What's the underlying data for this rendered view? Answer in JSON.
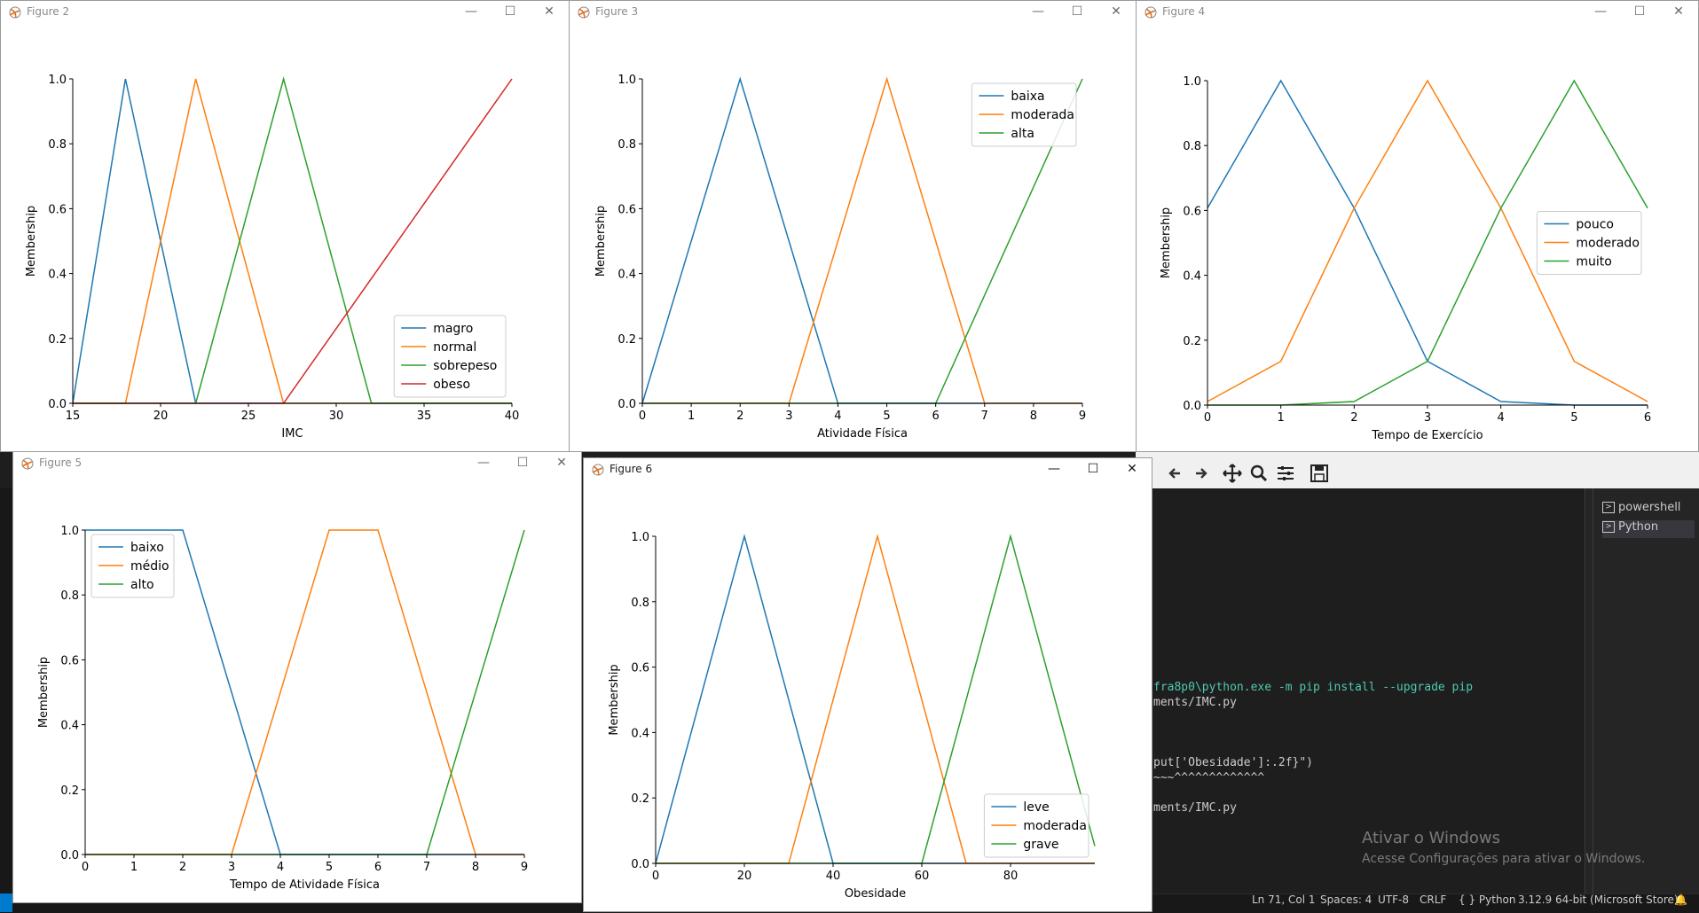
{
  "vscode": {
    "terminal_lines": [
      "fra8p0\\python.exe -m pip install --upgrade pip",
      "ments/IMC.py",
      "put['Obesidade']:.2f}\")",
      "~~~^^^^^^^^^^^^^",
      "ments/IMC.py"
    ],
    "terminal_tabs": [
      "powershell",
      "Python"
    ],
    "watermark_title": "Ativar o Windows",
    "watermark_sub": "Acesse Configurações para ativar o Windows.",
    "status": {
      "position": "Ln 71, Col 1",
      "spaces": "Spaces: 4",
      "encoding": "UTF-8",
      "eol": "CRLF",
      "language": "Python",
      "interpreter": "3.12.9 64-bit (Microsoft Store)"
    },
    "colors": {
      "bg": "#1e1e1e",
      "statusbar": "#181818",
      "terminal_green": "#4ec9b0",
      "activity": "#007acc"
    }
  },
  "window_controls": {
    "minimize": "—",
    "maximize": "☐",
    "close": "✕"
  },
  "mpl_toolbar": [
    "move-icon-back",
    "arrow-left-icon",
    "arrow-right-icon",
    "pan-icon",
    "zoom-icon",
    "configure-icon",
    "save-icon"
  ],
  "windows": [
    {
      "title": "Figure 2",
      "chart_data": {
        "type": "line",
        "xlabel": "IMC",
        "ylabel": "Membership",
        "xlim": [
          15,
          40
        ],
        "ylim": [
          0,
          1
        ],
        "xticks": [
          15,
          20,
          25,
          30,
          35,
          40
        ],
        "yticks": [
          0,
          0.2,
          0.4,
          0.6,
          0.8,
          1.0
        ],
        "legend_position": "lower-right",
        "series": [
          {
            "name": "magro",
            "color": "#1f77b4",
            "points": [
              [
                15,
                0
              ],
              [
                18,
                1
              ],
              [
                22,
                0
              ],
              [
                40,
                0
              ]
            ]
          },
          {
            "name": "normal",
            "color": "#ff7f0e",
            "points": [
              [
                15,
                0
              ],
              [
                18,
                0
              ],
              [
                22,
                1
              ],
              [
                27,
                0
              ],
              [
                40,
                0
              ]
            ]
          },
          {
            "name": "sobrepeso",
            "color": "#2ca02c",
            "points": [
              [
                15,
                0
              ],
              [
                22,
                0
              ],
              [
                27,
                1
              ],
              [
                32,
                0
              ],
              [
                40,
                0
              ]
            ]
          },
          {
            "name": "obeso",
            "color": "#d62728",
            "points": [
              [
                15,
                0
              ],
              [
                27,
                0
              ],
              [
                40,
                1
              ]
            ]
          }
        ]
      }
    },
    {
      "title": "Figure 3",
      "chart_data": {
        "type": "line",
        "xlabel": "Atividade Física",
        "ylabel": "Membership",
        "xlim": [
          0,
          9
        ],
        "ylim": [
          0,
          1
        ],
        "xticks": [
          0,
          1,
          2,
          3,
          4,
          5,
          6,
          7,
          8,
          9
        ],
        "yticks": [
          0,
          0.2,
          0.4,
          0.6,
          0.8,
          1.0
        ],
        "legend_position": "upper-right",
        "series": [
          {
            "name": "baixa",
            "color": "#1f77b4",
            "points": [
              [
                0,
                0
              ],
              [
                2,
                1
              ],
              [
                4,
                0
              ],
              [
                9,
                0
              ]
            ]
          },
          {
            "name": "moderada",
            "color": "#ff7f0e",
            "points": [
              [
                0,
                0
              ],
              [
                3,
                0
              ],
              [
                5,
                1
              ],
              [
                7,
                0
              ],
              [
                9,
                0
              ]
            ]
          },
          {
            "name": "alta",
            "color": "#2ca02c",
            "points": [
              [
                0,
                0
              ],
              [
                6,
                0
              ],
              [
                9,
                1
              ]
            ]
          }
        ]
      }
    },
    {
      "title": "Figure 4",
      "chart_data": {
        "type": "line",
        "xlabel": "Tempo de Exercício",
        "ylabel": "Membership",
        "xlim": [
          0,
          6
        ],
        "ylim": [
          0,
          1
        ],
        "xticks": [
          0,
          1,
          2,
          3,
          4,
          5,
          6
        ],
        "yticks": [
          0,
          0.2,
          0.4,
          0.6,
          0.8,
          1.0
        ],
        "legend_position": "center-right",
        "series": [
          {
            "name": "pouco",
            "color": "#1f77b4",
            "points": [
              [
                0,
                0.607
              ],
              [
                1,
                1
              ],
              [
                2,
                0.607
              ],
              [
                3,
                0.135
              ],
              [
                4,
                0.011
              ],
              [
                5,
                0
              ],
              [
                6,
                0
              ]
            ]
          },
          {
            "name": "moderado",
            "color": "#ff7f0e",
            "points": [
              [
                0,
                0.011
              ],
              [
                1,
                0.135
              ],
              [
                2,
                0.607
              ],
              [
                3,
                1
              ],
              [
                4,
                0.607
              ],
              [
                5,
                0.135
              ],
              [
                6,
                0.011
              ]
            ]
          },
          {
            "name": "muito",
            "color": "#2ca02c",
            "points": [
              [
                0,
                0
              ],
              [
                1,
                0
              ],
              [
                2,
                0.011
              ],
              [
                3,
                0.135
              ],
              [
                4,
                0.607
              ],
              [
                5,
                1
              ],
              [
                6,
                0.607
              ]
            ]
          }
        ]
      }
    },
    {
      "title": "Figure 5",
      "chart_data": {
        "type": "line",
        "xlabel": "Tempo de Atividade Física",
        "ylabel": "Membership",
        "xlim": [
          0,
          9
        ],
        "ylim": [
          0,
          1
        ],
        "xticks": [
          0,
          1,
          2,
          3,
          4,
          5,
          6,
          7,
          8,
          9
        ],
        "yticks": [
          0,
          0.2,
          0.4,
          0.6,
          0.8,
          1.0
        ],
        "legend_position": "upper-left",
        "series": [
          {
            "name": "baixo",
            "color": "#1f77b4",
            "points": [
              [
                0,
                1
              ],
              [
                2,
                1
              ],
              [
                4,
                0
              ],
              [
                9,
                0
              ]
            ]
          },
          {
            "name": "médio",
            "color": "#ff7f0e",
            "points": [
              [
                0,
                0
              ],
              [
                3,
                0
              ],
              [
                5,
                1
              ],
              [
                6,
                1
              ],
              [
                8,
                0
              ],
              [
                9,
                0
              ]
            ]
          },
          {
            "name": "alto",
            "color": "#2ca02c",
            "points": [
              [
                0,
                0
              ],
              [
                7,
                0
              ],
              [
                9,
                1
              ]
            ]
          }
        ]
      }
    },
    {
      "title": "Figure 6",
      "chart_data": {
        "type": "line",
        "xlabel": "Obesidade",
        "ylabel": "Membership",
        "xlim": [
          0,
          99
        ],
        "ylim": [
          0,
          1
        ],
        "xticks": [
          0,
          20,
          40,
          60,
          80
        ],
        "yticks": [
          0,
          0.2,
          0.4,
          0.6,
          0.8,
          1.0
        ],
        "legend_position": "lower-right",
        "series": [
          {
            "name": "leve",
            "color": "#1f77b4",
            "points": [
              [
                0,
                0
              ],
              [
                20,
                1
              ],
              [
                40,
                0
              ],
              [
                99,
                0
              ]
            ]
          },
          {
            "name": "moderada",
            "color": "#ff7f0e",
            "points": [
              [
                0,
                0
              ],
              [
                30,
                0
              ],
              [
                50,
                1
              ],
              [
                70,
                0
              ],
              [
                99,
                0
              ]
            ]
          },
          {
            "name": "grave",
            "color": "#2ca02c",
            "points": [
              [
                0,
                0
              ],
              [
                60,
                0
              ],
              [
                80,
                1
              ],
              [
                99,
                0.053
              ]
            ]
          }
        ]
      }
    }
  ]
}
